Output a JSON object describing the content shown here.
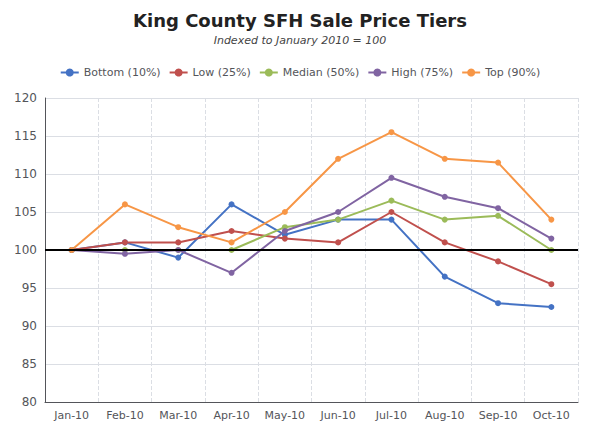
{
  "chart_data": {
    "type": "line",
    "title": "King County SFH Sale Price Tiers",
    "subtitle": "Indexed to January 2010 = 100",
    "categories": [
      "Jan-10",
      "Feb-10",
      "Mar-10",
      "Apr-10",
      "May-10",
      "Jun-10",
      "Jul-10",
      "Aug-10",
      "Sep-10",
      "Oct-10"
    ],
    "series": [
      {
        "name": "Bottom (10%)",
        "color": "#4472C4",
        "marker": "circle",
        "values": [
          100,
          101,
          99,
          106,
          102,
          104,
          104,
          96.5,
          93,
          92.5
        ]
      },
      {
        "name": "Low (25%)",
        "color": "#C0504D",
        "marker": "circle",
        "values": [
          100,
          101,
          101,
          102.5,
          101.5,
          101,
          105,
          101,
          98.5,
          95.5
        ]
      },
      {
        "name": "Median (50%)",
        "color": "#9BBB59",
        "marker": "circle",
        "values": [
          100,
          100,
          100,
          100,
          103,
          104,
          106.5,
          104,
          104.5,
          100
        ]
      },
      {
        "name": "High (75%)",
        "color": "#8064A2",
        "marker": "circle",
        "values": [
          100,
          99.5,
          100,
          97,
          102.5,
          105,
          109.5,
          107,
          105.5,
          101.5
        ]
      },
      {
        "name": "Top (90%)",
        "color": "#F79646",
        "marker": "circle",
        "values": [
          100,
          106,
          103,
          101,
          105,
          112,
          115.5,
          112,
          111.5,
          104
        ]
      }
    ],
    "baseline": 100,
    "ylim": [
      80,
      120
    ],
    "yticks": [
      80,
      85,
      90,
      95,
      100,
      105,
      110,
      115,
      120
    ],
    "grid": true,
    "legend": "top"
  }
}
